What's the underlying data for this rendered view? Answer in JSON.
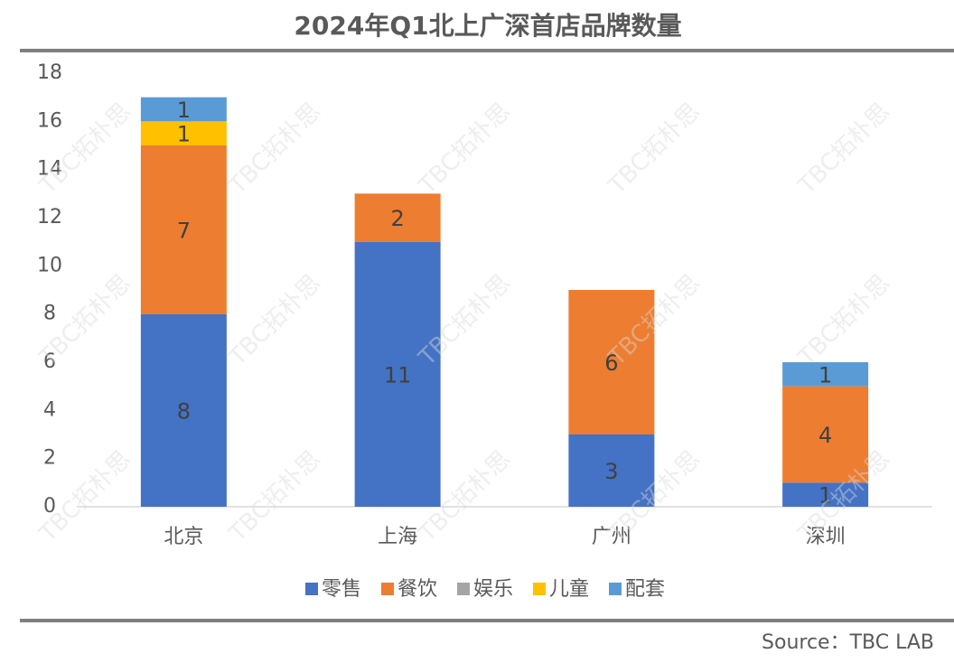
{
  "chart_data": {
    "type": "stacked_bar",
    "title": "2024年Q1北上广深首店品牌数量",
    "categories": [
      "北京",
      "上海",
      "广州",
      "深圳"
    ],
    "series": [
      {
        "name": "零售",
        "color": "#4472c4",
        "values": [
          8,
          11,
          3,
          1
        ]
      },
      {
        "name": "餐饮",
        "color": "#ed7d31",
        "values": [
          7,
          2,
          6,
          4
        ]
      },
      {
        "name": "娱乐",
        "color": "#a5a5a5",
        "values": [
          0,
          0,
          0,
          0
        ]
      },
      {
        "name": "儿童",
        "color": "#ffc000",
        "values": [
          1,
          0,
          0,
          0
        ]
      },
      {
        "name": "配套",
        "color": "#5b9bd5",
        "values": [
          1,
          0,
          0,
          1
        ]
      }
    ],
    "ylim": [
      0,
      18
    ],
    "yticks": [
      0,
      2,
      4,
      6,
      8,
      10,
      12,
      14,
      16,
      18
    ],
    "legend": "bottom",
    "watermark": "TBC拓朴思",
    "source": "Source：TBC LAB"
  }
}
